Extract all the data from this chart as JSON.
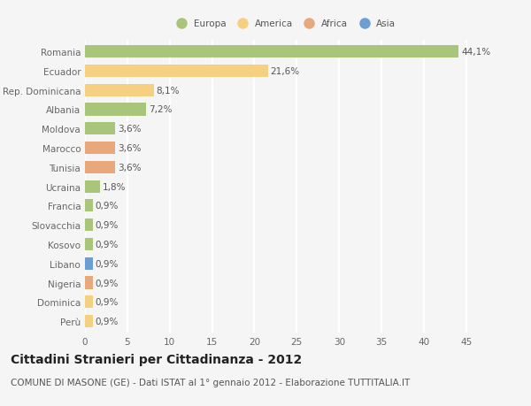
{
  "title": "Cittadini Stranieri per Cittadinanza - 2012",
  "subtitle": "COMUNE DI MASONE (GE) - Dati ISTAT al 1° gennaio 2012 - Elaborazione TUTTITALIA.IT",
  "categories": [
    "Romania",
    "Ecuador",
    "Rep. Dominicana",
    "Albania",
    "Moldova",
    "Marocco",
    "Tunisia",
    "Ucraina",
    "Francia",
    "Slovacchia",
    "Kosovo",
    "Libano",
    "Nigeria",
    "Dominica",
    "Perù"
  ],
  "values": [
    44.1,
    21.6,
    8.1,
    7.2,
    3.6,
    3.6,
    3.6,
    1.8,
    0.9,
    0.9,
    0.9,
    0.9,
    0.9,
    0.9,
    0.9
  ],
  "labels": [
    "44,1%",
    "21,6%",
    "8,1%",
    "7,2%",
    "3,6%",
    "3,6%",
    "3,6%",
    "1,8%",
    "0,9%",
    "0,9%",
    "0,9%",
    "0,9%",
    "0,9%",
    "0,9%",
    "0,9%"
  ],
  "continent": [
    "Europa",
    "America",
    "America",
    "Europa",
    "Europa",
    "Africa",
    "Africa",
    "Europa",
    "Europa",
    "Europa",
    "Europa",
    "Asia",
    "Africa",
    "America",
    "America"
  ],
  "colors": {
    "Europa": "#a8c57a",
    "America": "#f5d080",
    "Africa": "#e8a87c",
    "Asia": "#6b9fd4"
  },
  "legend_order": [
    "Europa",
    "America",
    "Africa",
    "Asia"
  ],
  "legend_colors": [
    "#a8c57a",
    "#f5d080",
    "#e8a87c",
    "#6b9fd4"
  ],
  "xlim": [
    0,
    47
  ],
  "xticks": [
    0,
    5,
    10,
    15,
    20,
    25,
    30,
    35,
    40,
    45
  ],
  "background_color": "#f5f5f5",
  "grid_color": "#ffffff",
  "title_fontsize": 10,
  "subtitle_fontsize": 7.5,
  "label_fontsize": 7.5,
  "tick_fontsize": 7.5,
  "bar_height": 0.65
}
